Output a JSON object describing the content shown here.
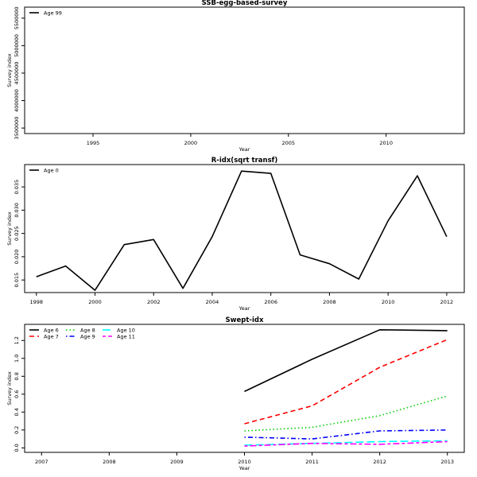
{
  "chart_data": [
    {
      "type": "line",
      "title": "SSB-egg-based-survey",
      "xlabel": "Year",
      "ylabel": "Survey index",
      "xlim": [
        1991.5,
        2014.0
      ],
      "ylim": [
        3400000,
        5700000
      ],
      "xticks": [
        1995,
        2000,
        2005,
        2010
      ],
      "yticks": [
        3500000,
        4000000,
        4500000,
        5000000,
        5500000
      ],
      "ytick_labels": [
        "3500000",
        "4000000",
        "4500000",
        "5000000",
        "5500000"
      ],
      "legend_position": "top-left",
      "series": [
        {
          "name": "Age 99",
          "color": "#000000",
          "dash": "solid",
          "x": [],
          "y": []
        }
      ]
    },
    {
      "type": "line",
      "title": "R-idx(sqrt transf)",
      "xlabel": "Year",
      "ylabel": "Survey index",
      "xlim": [
        1997.6,
        2012.6
      ],
      "ylim": [
        0.0123,
        0.0398
      ],
      "xticks": [
        1998,
        2000,
        2002,
        2004,
        2006,
        2008,
        2010,
        2012
      ],
      "yticks": [
        0.015,
        0.02,
        0.025,
        0.03,
        0.035
      ],
      "ytick_labels": [
        "0.015",
        "0.020",
        "0.025",
        "0.030",
        "0.035"
      ],
      "legend_position": "top-left",
      "series": [
        {
          "name": "Age 0",
          "color": "#000000",
          "dash": "solid",
          "x": [
            1998,
            1999,
            2000,
            2001,
            2002,
            2003,
            2004,
            2005,
            2006,
            2007,
            2008,
            2009,
            2010,
            2011,
            2012
          ],
          "y": [
            0.0157,
            0.018,
            0.0128,
            0.0226,
            0.0237,
            0.0132,
            0.0243,
            0.0384,
            0.0379,
            0.0204,
            0.0185,
            0.0152,
            0.0277,
            0.0374,
            0.0243
          ]
        }
      ]
    },
    {
      "type": "line",
      "title": "Swept-idx",
      "xlabel": "Year",
      "ylabel": "Survey index",
      "xlim": [
        2006.75,
        2013.25
      ],
      "ylim": [
        -0.05,
        1.38
      ],
      "xticks": [
        2007,
        2008,
        2009,
        2010,
        2011,
        2012,
        2013
      ],
      "yticks": [
        0.0,
        0.2,
        0.4,
        0.6,
        0.8,
        1.0,
        1.2
      ],
      "ytick_labels": [
        "0.0",
        "0.2",
        "0.4",
        "0.6",
        "0.8",
        "1.0",
        "1.2"
      ],
      "legend_position": "top-left",
      "series": [
        {
          "name": "Age 6",
          "color": "#000000",
          "dash": "solid",
          "x": [
            2010,
            2011,
            2012,
            2013
          ],
          "y": [
            0.63,
            0.99,
            1.32,
            1.31
          ]
        },
        {
          "name": "Age 7",
          "color": "#ff0000",
          "dash": "dashed",
          "x": [
            2010,
            2011,
            2012,
            2013
          ],
          "y": [
            0.27,
            0.47,
            0.9,
            1.21
          ]
        },
        {
          "name": "Age 8",
          "color": "#00cd00",
          "dash": "dotted",
          "x": [
            2010,
            2011,
            2012,
            2013
          ],
          "y": [
            0.19,
            0.23,
            0.36,
            0.58
          ]
        },
        {
          "name": "Age 9",
          "color": "#0000ff",
          "dash": "dotdash",
          "x": [
            2010,
            2011,
            2012,
            2013
          ],
          "y": [
            0.12,
            0.1,
            0.19,
            0.2
          ]
        },
        {
          "name": "Age 10",
          "color": "#00ffff",
          "dash": "longdash",
          "x": [
            2010,
            2011,
            2012,
            2013
          ],
          "y": [
            0.03,
            0.05,
            0.07,
            0.08
          ]
        },
        {
          "name": "Age 11",
          "color": "#ff00ff",
          "dash": "twodash",
          "x": [
            2010,
            2011,
            2012,
            2013
          ],
          "y": [
            0.02,
            0.05,
            0.04,
            0.07
          ]
        }
      ]
    }
  ]
}
